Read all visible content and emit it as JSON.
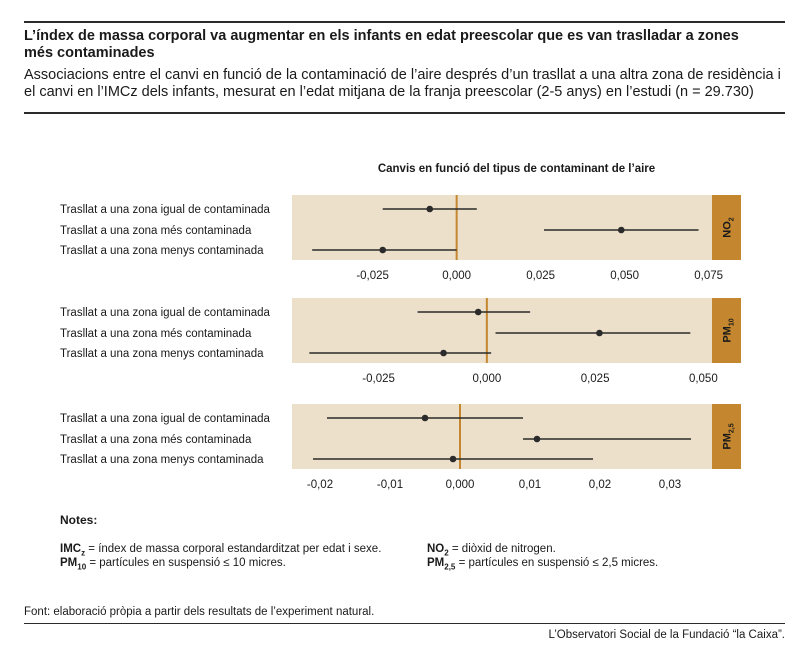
{
  "header": {
    "title": "L’índex de massa corporal va augmentar en els infants en edat preescolar que es van traslladar a zones més contaminades",
    "subtitle": "Associacions entre el canvi en funció de la contaminació de l’aire després d’un trasllat a una altra zona de residència i el canvi en l’IMCz dels infants, mesurat en l’edat mitjana de la franja preescolar (2-5 anys) en l’estudi (n = 29.730)"
  },
  "chart_title": "Canvis en funció del tipus de contaminant de l’aire",
  "colors": {
    "panel_bg": "#ede0cb",
    "band": "#c4862e",
    "zero_line": "#c4862e",
    "marker": "#2b2b2b"
  },
  "chart_data": [
    {
      "type": "scatter",
      "pollutant": "NO",
      "pollutant_sub": "2",
      "categories": [
        "Trasllat a una zona igual de contaminada",
        "Trasllat a una zona més contaminada",
        "Trasllat a una zona menys contaminada"
      ],
      "estimates": [
        -0.008,
        0.049,
        -0.022
      ],
      "ci_low": [
        -0.022,
        0.026,
        -0.043
      ],
      "ci_high": [
        0.006,
        0.072,
        0.0
      ],
      "xlim": [
        -0.049,
        0.076
      ],
      "xticks": [
        -0.025,
        0.0,
        0.025,
        0.05,
        0.075
      ],
      "xtick_labels": [
        "-0,025",
        "0,000",
        "0,025",
        "0,050",
        "0,075"
      ]
    },
    {
      "type": "scatter",
      "pollutant": "PM",
      "pollutant_sub": "10",
      "categories": [
        "Trasllat a una zona igual de contaminada",
        "Trasllat a una zona més contaminada",
        "Trasllat a una zona menys contaminada"
      ],
      "estimates": [
        -0.002,
        0.026,
        -0.01
      ],
      "ci_low": [
        -0.016,
        0.002,
        -0.041
      ],
      "ci_high": [
        0.01,
        0.047,
        0.001
      ],
      "xlim": [
        -0.045,
        0.052
      ],
      "xticks": [
        -0.025,
        0.0,
        0.025,
        0.05
      ],
      "xtick_labels": [
        "-0,025",
        "0,000",
        "0,025",
        "0,050"
      ]
    },
    {
      "type": "scatter",
      "pollutant": "PM",
      "pollutant_sub": "2,5",
      "categories": [
        "Trasllat a una zona igual de contaminada",
        "Trasllat a una zona més contaminada",
        "Trasllat a una zona menys contaminada"
      ],
      "estimates": [
        -0.005,
        0.011,
        -0.001
      ],
      "ci_low": [
        -0.019,
        0.009,
        -0.021
      ],
      "ci_high": [
        0.009,
        0.033,
        0.019
      ],
      "xlim": [
        -0.024,
        0.036
      ],
      "xticks": [
        -0.02,
        -0.01,
        0.0,
        0.01,
        0.02,
        0.03
      ],
      "xtick_labels": [
        "-0,02",
        "-0,01",
        "0,000",
        "0,01",
        "0,02",
        "0,03"
      ]
    }
  ],
  "notes": {
    "heading": "Notes:",
    "imc_term": "IMC",
    "imc_sub": "z",
    "imc_def": " = índex de massa corporal estandarditzat per edat i sexe.",
    "pm10_term": "PM",
    "pm10_sub": "10",
    "pm10_def": " = partícules en suspensió ≤ 10 micres.",
    "no2_term": "NO",
    "no2_sub": "2",
    "no2_def": " = diòxid de nitrogen.",
    "pm25_term": "PM",
    "pm25_sub": "2,5",
    "pm25_def": " = partícules en suspensió ≤ 2,5 micres."
  },
  "source": "Font: elaboració pròpia a partir dels resultats de l’experiment natural.",
  "credit": "L’Observatori Social de la Fundació “la Caixa”."
}
